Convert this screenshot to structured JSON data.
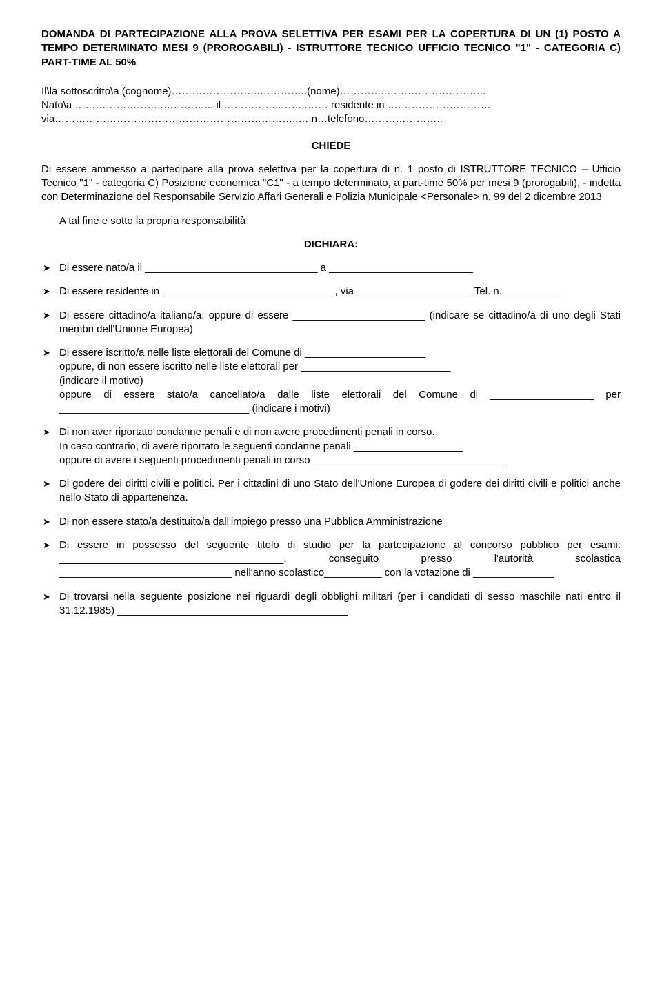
{
  "title": "DOMANDA DI PARTECIPAZIONE ALLA PROVA SELETTIVA PER ESAMI PER LA COPERTURA DI UN (1) POSTO A TEMPO DETERMINATO MESI 9 (PROROGABILI) - ISTRUTTORE TECNICO UFFICIO TECNICO \"1\" - CATEGORIA C) PART-TIME AL 50%",
  "intro": {
    "line1": "Il\\la sottoscritto\\a (cognome)……………………..…………..(nome)…………..………………………..",
    "line2": "Nato\\a ……………………..…………... il ……………..……..…… residente in ………………………… via……………………………………………………………..….n…telefono………………….."
  },
  "chiede_label": "CHIEDE",
  "chiede_body": "Di essere ammesso a partecipare alla prova selettiva per la copertura di n. 1 posto di ISTRUTTORE TECNICO – Ufficio Tecnico \"1\" - categoria C) Posizione economica \"C1\" - a tempo determinato, a part-time 50% per mesi 9 (prorogabili), - indetta con Determinazione del Responsabile Servizio Affari Generali e Polizia Municipale <Personale> n. 99 del 2 dicembre 2013",
  "a_tal_fine": "A tal fine e sotto la propria responsabilità",
  "dichiara_label": "DICHIARA:",
  "items": [
    "Di essere nato/a il ______________________________ a _________________________",
    "Di essere residente in ______________________________, via ____________________ Tel. n. __________",
    "Di essere cittadino/a italiano/a,  oppure di essere _______________________ (indicare se cittadino/a di uno degli Stati membri dell'Unione Europea)",
    "Di essere iscritto/a nelle liste elettorali del Comune di _____________________\noppure, di non essere iscritto nelle liste elettorali per __________________________\n(indicare il motivo)\noppure  di  essere  stato/a cancellato/a  dalle  liste  elettorali  del  Comune  di __________________ per _________________________________ (indicare i motivi)",
    "Di non  aver riportato condanne penali e di non avere procedimenti penali in corso.\nIn caso   contrario, di avere riportato le seguenti condanne penali ___________________\noppure di avere i seguenti procedimenti penali in corso _________________________________",
    "Di godere dei diritti civili e politici. Per i cittadini di uno Stato dell'Unione Europea di godere dei diritti civili e politici anche nello Stato di appartenenza.",
    "Di non essere stato/a destituito/a dall'impiego presso una Pubblica Amministrazione",
    "Di essere in possesso del seguente titolo di studio per la partecipazione al concorso pubblico per esami: _______________________________________, conseguito presso l'autorità scolastica ______________________________ nell'anno scolastico__________ con la votazione di ______________",
    "Di trovarsi nella seguente posizione nei riguardi degli obblighi militari (per i candidati di sesso maschile nati entro il 31.12.1985) ________________________________________"
  ]
}
